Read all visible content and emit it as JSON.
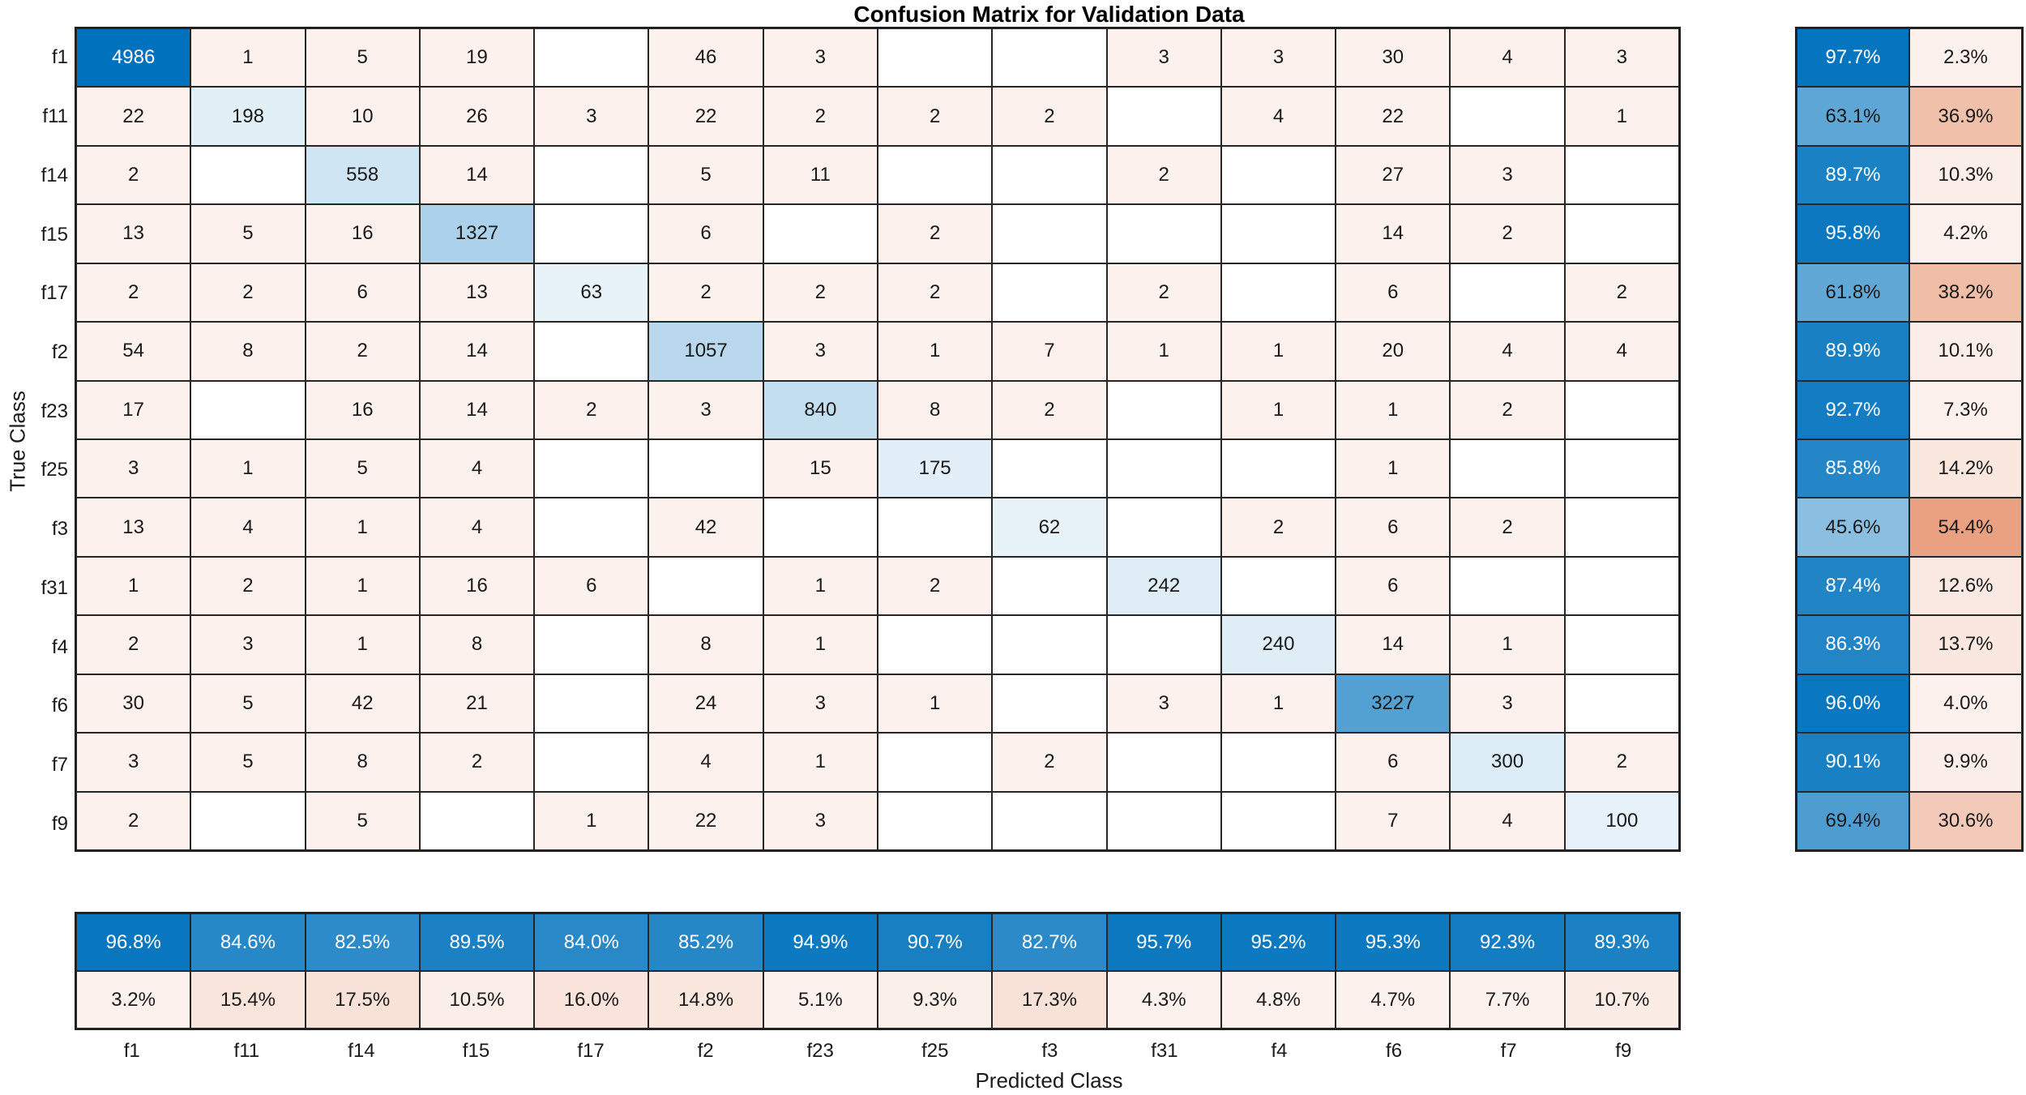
{
  "title": "Confusion Matrix for Validation Data",
  "axes": {
    "x_label": "Predicted Class",
    "y_label": "True Class"
  },
  "colors": {
    "diagonal_base": "#0072BD",
    "off_diagonal_base": "#D95319",
    "zero_cell": "#FFFFFF",
    "grid_line": "#262626",
    "text_dark": "#1A1A1A",
    "text_light": "#FFFFFF"
  },
  "chart_data": {
    "type": "heatmap",
    "subtype": "confusion-matrix",
    "classes": [
      "f1",
      "f11",
      "f14",
      "f15",
      "f17",
      "f2",
      "f23",
      "f25",
      "f3",
      "f31",
      "f4",
      "f6",
      "f7",
      "f9"
    ],
    "max_diagonal_value": 4986,
    "matrix": [
      [
        4986,
        1,
        5,
        19,
        null,
        46,
        3,
        null,
        null,
        3,
        3,
        30,
        4,
        3
      ],
      [
        22,
        198,
        10,
        26,
        3,
        22,
        2,
        2,
        2,
        null,
        4,
        22,
        null,
        1
      ],
      [
        2,
        null,
        558,
        14,
        null,
        5,
        11,
        null,
        null,
        2,
        null,
        27,
        3,
        null
      ],
      [
        13,
        5,
        16,
        1327,
        null,
        6,
        null,
        2,
        null,
        null,
        null,
        14,
        2,
        null
      ],
      [
        2,
        2,
        6,
        13,
        63,
        2,
        2,
        2,
        null,
        2,
        null,
        6,
        null,
        2
      ],
      [
        54,
        8,
        2,
        14,
        null,
        1057,
        3,
        1,
        7,
        1,
        1,
        20,
        4,
        4
      ],
      [
        17,
        null,
        16,
        14,
        2,
        3,
        840,
        8,
        2,
        null,
        1,
        1,
        2,
        null
      ],
      [
        3,
        1,
        5,
        4,
        null,
        null,
        15,
        175,
        null,
        null,
        null,
        1,
        null,
        null
      ],
      [
        13,
        4,
        1,
        4,
        null,
        42,
        null,
        null,
        62,
        null,
        2,
        6,
        2,
        null
      ],
      [
        1,
        2,
        1,
        16,
        6,
        null,
        1,
        2,
        null,
        242,
        null,
        6,
        null,
        null
      ],
      [
        2,
        3,
        1,
        8,
        null,
        8,
        1,
        null,
        null,
        null,
        240,
        14,
        1,
        null
      ],
      [
        30,
        5,
        42,
        21,
        null,
        24,
        3,
        1,
        null,
        3,
        1,
        3227,
        3,
        null
      ],
      [
        3,
        5,
        8,
        2,
        null,
        4,
        1,
        null,
        2,
        null,
        null,
        6,
        300,
        2
      ],
      [
        2,
        null,
        5,
        null,
        1,
        22,
        3,
        null,
        null,
        null,
        null,
        7,
        4,
        100
      ]
    ],
    "row_summary": {
      "correct": [
        "97.7%",
        "63.1%",
        "89.7%",
        "95.8%",
        "61.8%",
        "89.9%",
        "92.7%",
        "85.8%",
        "45.6%",
        "87.4%",
        "86.3%",
        "96.0%",
        "90.1%",
        "69.4%"
      ],
      "incorrect": [
        "2.3%",
        "36.9%",
        "10.3%",
        "4.2%",
        "38.2%",
        "10.1%",
        "7.3%",
        "14.2%",
        "54.4%",
        "12.6%",
        "13.7%",
        "4.0%",
        "9.9%",
        "30.6%"
      ]
    },
    "column_summary": {
      "correct": [
        "96.8%",
        "84.6%",
        "82.5%",
        "89.5%",
        "84.0%",
        "85.2%",
        "94.9%",
        "90.7%",
        "82.7%",
        "95.7%",
        "95.2%",
        "95.3%",
        "92.3%",
        "89.3%"
      ],
      "incorrect": [
        "3.2%",
        "15.4%",
        "17.5%",
        "10.5%",
        "16.0%",
        "14.8%",
        "5.1%",
        "9.3%",
        "17.3%",
        "4.3%",
        "4.8%",
        "4.7%",
        "7.7%",
        "10.7%"
      ]
    }
  }
}
